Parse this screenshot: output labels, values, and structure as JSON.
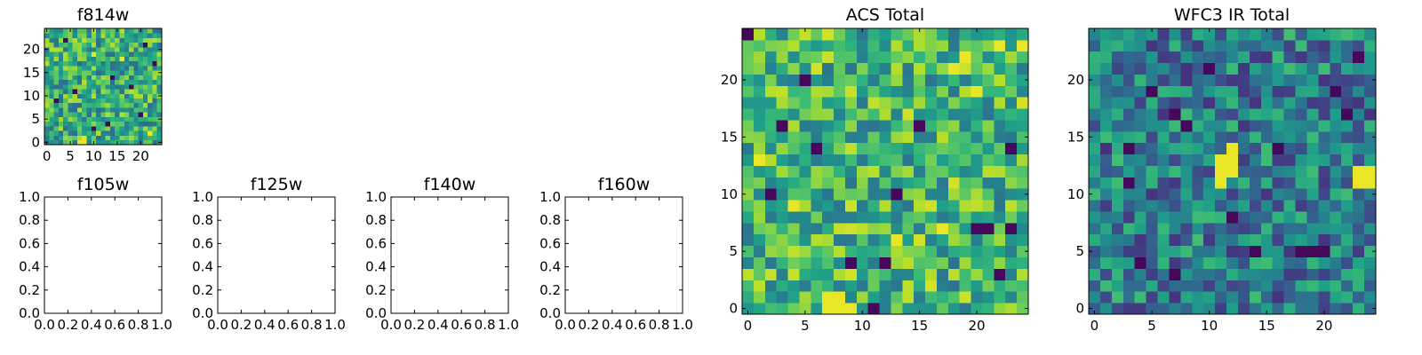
{
  "chart_data": [
    {
      "type": "heatmap",
      "title": "f814w",
      "x_range": [
        -0.5,
        24.5
      ],
      "y_range": [
        -0.5,
        24.5
      ],
      "xticks": [
        0,
        5,
        10,
        15,
        20
      ],
      "yticks": [
        0,
        5,
        10,
        15,
        20
      ],
      "grid_size": [
        25,
        25
      ],
      "colormap": "viridis",
      "seed": 11,
      "hot_spots": [
        [
          7,
          0
        ],
        [
          8,
          0
        ],
        [
          8,
          1
        ],
        [
          16,
          18
        ],
        [
          22,
          2
        ],
        [
          10,
          19
        ]
      ],
      "cold_spots": [
        [
          14,
          14
        ],
        [
          4,
          22
        ],
        [
          20,
          6
        ],
        [
          13,
          4
        ],
        [
          2,
          9
        ],
        [
          18,
          12
        ],
        [
          10,
          3
        ],
        [
          23,
          17
        ],
        [
          6,
          11
        ],
        [
          21,
          21
        ]
      ],
      "base": 0.62
    },
    {
      "type": "heatmap",
      "title": "f105w",
      "empty": true,
      "x_range": [
        0,
        1
      ],
      "y_range": [
        0,
        1
      ],
      "xticks": [
        "0.0",
        "0.2",
        "0.4",
        "0.6",
        "0.8",
        "1.0"
      ],
      "yticks": [
        "0.0",
        "0.2",
        "0.4",
        "0.6",
        "0.8",
        "1.0"
      ]
    },
    {
      "type": "heatmap",
      "title": "f125w",
      "empty": true,
      "x_range": [
        0,
        1
      ],
      "y_range": [
        0,
        1
      ],
      "xticks": [
        "0.0",
        "0.2",
        "0.4",
        "0.6",
        "0.8",
        "1.0"
      ],
      "yticks": [
        "0.0",
        "0.2",
        "0.4",
        "0.6",
        "0.8",
        "1.0"
      ]
    },
    {
      "type": "heatmap",
      "title": "f140w",
      "empty": true,
      "x_range": [
        0,
        1
      ],
      "y_range": [
        0,
        1
      ],
      "xticks": [
        "0.0",
        "0.2",
        "0.4",
        "0.6",
        "0.8",
        "1.0"
      ],
      "yticks": [
        "0.0",
        "0.2",
        "0.4",
        "0.6",
        "0.8",
        "1.0"
      ]
    },
    {
      "type": "heatmap",
      "title": "f160w",
      "empty": true,
      "x_range": [
        0,
        1
      ],
      "y_range": [
        0,
        1
      ],
      "xticks": [
        "0.0",
        "0.2",
        "0.4",
        "0.6",
        "0.8",
        "1.0"
      ],
      "yticks": [
        "0.0",
        "0.2",
        "0.4",
        "0.6",
        "0.8",
        "1.0"
      ]
    },
    {
      "type": "heatmap",
      "title": "ACS Total",
      "x_range": [
        -0.5,
        24.5
      ],
      "y_range": [
        -0.5,
        24.5
      ],
      "xticks": [
        0,
        5,
        10,
        15,
        20
      ],
      "yticks": [
        0,
        5,
        10,
        15,
        20
      ],
      "grid_size": [
        25,
        25
      ],
      "colormap": "viridis",
      "seed": 23,
      "hot_spots": [
        [
          7,
          0
        ],
        [
          8,
          0
        ],
        [
          9,
          0
        ],
        [
          8,
          1
        ],
        [
          7,
          1
        ],
        [
          22,
          23
        ],
        [
          24,
          23
        ],
        [
          18,
          21
        ],
        [
          19,
          22
        ],
        [
          13,
          6
        ],
        [
          17,
          7
        ],
        [
          4,
          9
        ],
        [
          1,
          13
        ],
        [
          20,
          19
        ]
      ],
      "cold_spots": [
        [
          9,
          4
        ],
        [
          12,
          4
        ],
        [
          3,
          16
        ],
        [
          13,
          10
        ],
        [
          5,
          20
        ],
        [
          20,
          7
        ],
        [
          21,
          7
        ],
        [
          23,
          7
        ],
        [
          23,
          14
        ],
        [
          2,
          10
        ],
        [
          6,
          14
        ],
        [
          11,
          0
        ],
        [
          15,
          16
        ],
        [
          22,
          3
        ],
        [
          0,
          24
        ]
      ],
      "base": 0.66
    },
    {
      "type": "heatmap",
      "title": "WFC3 IR Total",
      "x_range": [
        -0.5,
        24.5
      ],
      "y_range": [
        -0.5,
        24.5
      ],
      "xticks": [
        0,
        5,
        10,
        15,
        20
      ],
      "yticks": [
        0,
        5,
        10,
        15,
        20
      ],
      "grid_size": [
        25,
        25
      ],
      "colormap": "viridis",
      "seed": 37,
      "hot_spots": [
        [
          11,
          13
        ],
        [
          12,
          13
        ],
        [
          12,
          14
        ],
        [
          11,
          11
        ],
        [
          12,
          12
        ],
        [
          11,
          12
        ],
        [
          23,
          12
        ],
        [
          24,
          12
        ],
        [
          24,
          11
        ],
        [
          23,
          11
        ]
      ],
      "cold_spots": [
        [
          3,
          14
        ],
        [
          7,
          17
        ],
        [
          8,
          16
        ],
        [
          14,
          5
        ],
        [
          18,
          5
        ],
        [
          19,
          5
        ],
        [
          20,
          5
        ],
        [
          5,
          19
        ],
        [
          21,
          19
        ],
        [
          22,
          17
        ],
        [
          4,
          4
        ],
        [
          7,
          3
        ],
        [
          10,
          21
        ],
        [
          3,
          11
        ],
        [
          16,
          14
        ],
        [
          23,
          22
        ],
        [
          12,
          8
        ]
      ],
      "base": 0.42
    }
  ]
}
